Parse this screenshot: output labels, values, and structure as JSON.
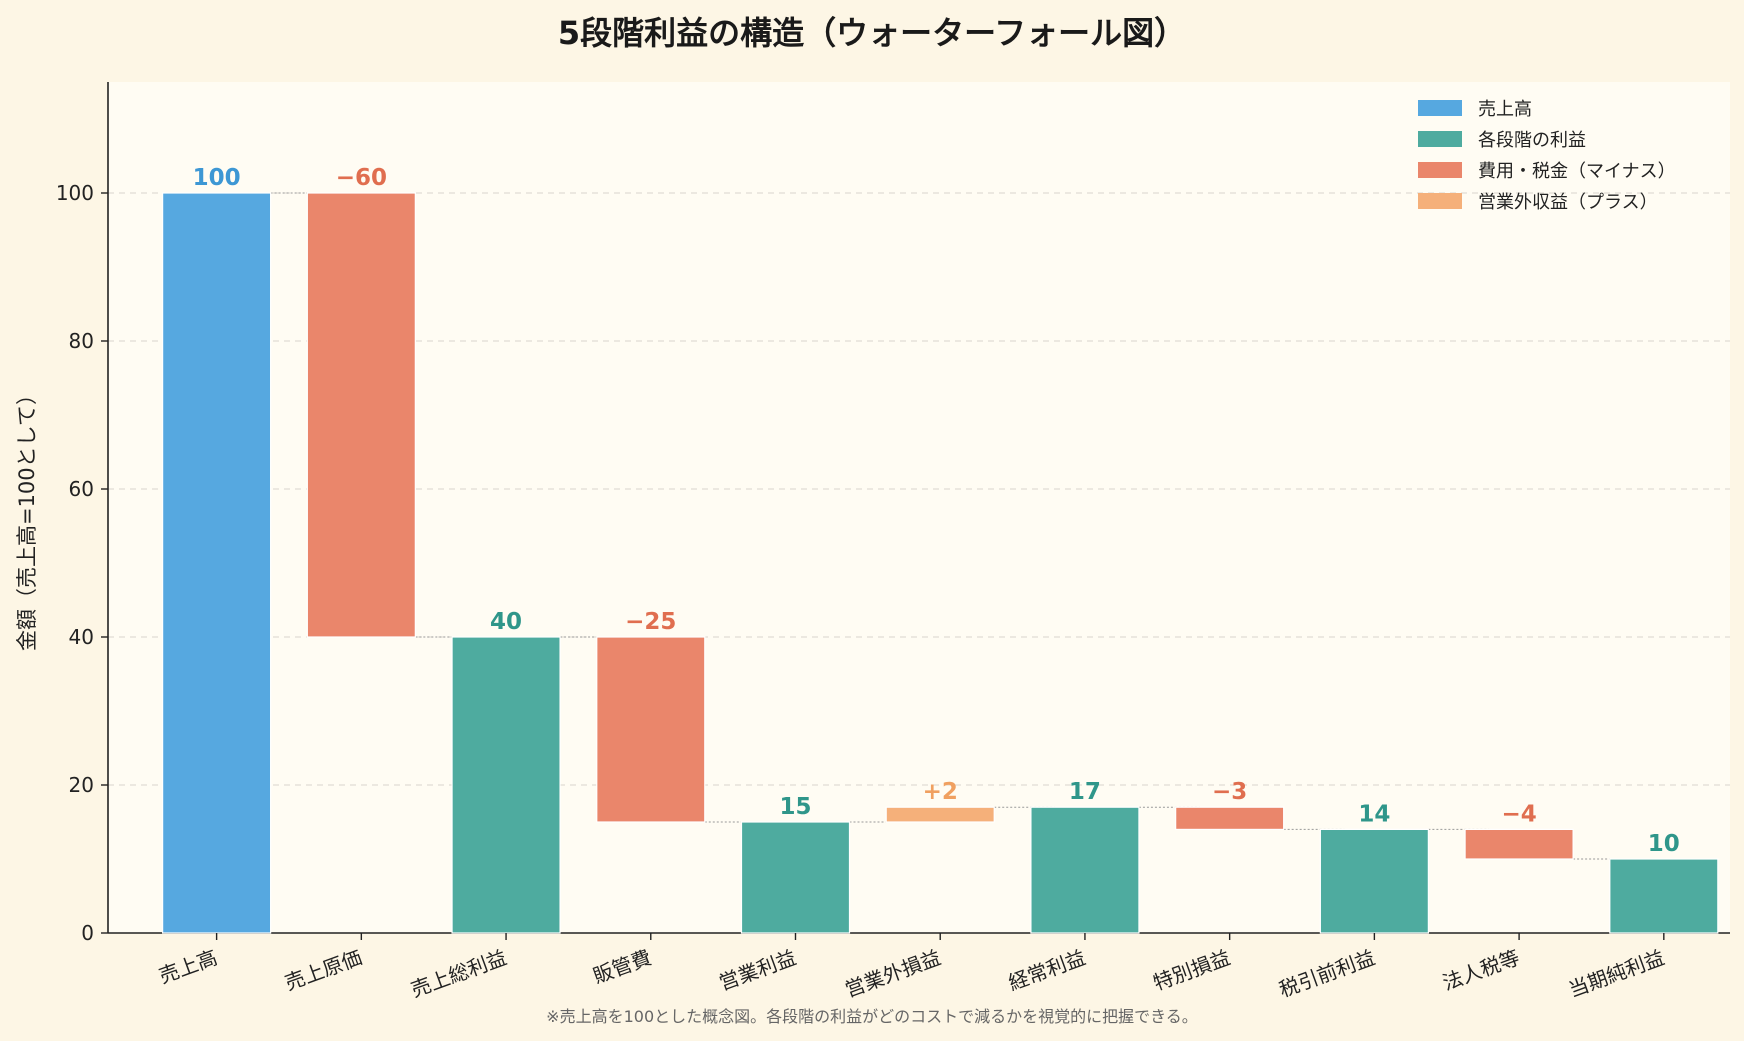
{
  "chart_data": {
    "type": "bar",
    "subtype": "waterfall",
    "title": "5段階利益の構造（ウォーターフォール図）",
    "ylabel": "金額（売上高=100として）",
    "xlabel": "",
    "ylim": [
      0,
      115
    ],
    "yticks": [
      0,
      20,
      40,
      60,
      80,
      100
    ],
    "grid": true,
    "legend_position": "top-right",
    "categories": [
      "売上高",
      "売上原価",
      "売上総利益",
      "販管費",
      "営業利益",
      "営業外損益",
      "経常利益",
      "特別損益",
      "税引前利益",
      "法人税等",
      "当期純利益"
    ],
    "bars": [
      {
        "category": "売上高",
        "kind": "revenue",
        "base": 0,
        "value": 100,
        "label": "100"
      },
      {
        "category": "売上原価",
        "kind": "cost",
        "base": 40,
        "value": 60,
        "label": "−60"
      },
      {
        "category": "売上総利益",
        "kind": "profit",
        "base": 0,
        "value": 40,
        "label": "40"
      },
      {
        "category": "販管費",
        "kind": "cost",
        "base": 15,
        "value": 25,
        "label": "−25"
      },
      {
        "category": "営業利益",
        "kind": "profit",
        "base": 0,
        "value": 15,
        "label": "15"
      },
      {
        "category": "営業外損益",
        "kind": "gain",
        "base": 15,
        "value": 2,
        "label": "+2"
      },
      {
        "category": "経常利益",
        "kind": "profit",
        "base": 0,
        "value": 17,
        "label": "17"
      },
      {
        "category": "特別損益",
        "kind": "cost",
        "base": 14,
        "value": 3,
        "label": "−3"
      },
      {
        "category": "税引前利益",
        "kind": "profit",
        "base": 0,
        "value": 14,
        "label": "14"
      },
      {
        "category": "法人税等",
        "kind": "cost",
        "base": 10,
        "value": 4,
        "label": "−4"
      },
      {
        "category": "当期純利益",
        "kind": "profit",
        "base": 0,
        "value": 10,
        "label": "10"
      }
    ],
    "legend": [
      {
        "kind": "revenue",
        "label": "売上高"
      },
      {
        "kind": "profit",
        "label": "各段階の利益"
      },
      {
        "kind": "cost",
        "label": "費用・税金（マイナス）"
      },
      {
        "kind": "gain",
        "label": "営業外収益（プラス）"
      }
    ],
    "colors": {
      "revenue": "#56a8e0",
      "profit": "#4eab9f",
      "cost": "#ea866b",
      "gain": "#f5b07a"
    },
    "label_colors": {
      "revenue": "#3d97d4",
      "profit": "#2f968a",
      "cost": "#e06e4f",
      "gain": "#f0a060"
    },
    "footnote": "※売上高を100とした概念図。各段階の利益がどのコストで減るかを視覚的に把握できる。"
  }
}
